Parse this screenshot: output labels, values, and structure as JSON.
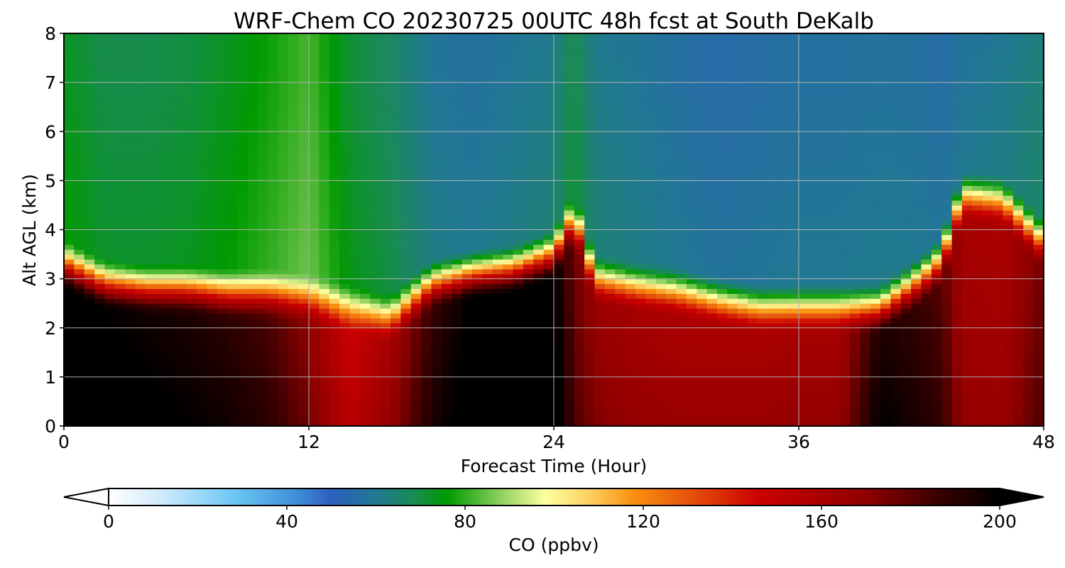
{
  "chart_data": {
    "type": "heatmap",
    "subtype": "filled-contour time-height cross section",
    "title": "WRF-Chem CO  20230725 00UTC 48h fcst at South DeKalb",
    "xlabel": "Forecast Time (Hour)",
    "ylabel": "Alt AGL (km)",
    "xlim": [
      0,
      48
    ],
    "ylim": [
      0,
      8
    ],
    "xticks": [
      0,
      12,
      24,
      36,
      48
    ],
    "xtick_labels": [
      "0",
      "12",
      "24",
      "36",
      "48"
    ],
    "yticks": [
      0,
      1,
      2,
      3,
      4,
      5,
      6,
      7,
      8
    ],
    "ytick_labels": [
      "0",
      "1",
      "2",
      "3",
      "4",
      "5",
      "6",
      "7",
      "8"
    ],
    "grid": true,
    "colorbar": {
      "label": "CO  (ppbv)",
      "range": [
        0,
        200
      ],
      "ticks": [
        0,
        40,
        80,
        120,
        160,
        200
      ],
      "tick_labels": [
        "0",
        "40",
        "80",
        "120",
        "160",
        "200"
      ],
      "extend": "both",
      "orientation": "horizontal",
      "placement": "bottom",
      "colormap_stops": [
        {
          "value": 0,
          "color": "#ffffff"
        },
        {
          "value": 12,
          "color": "#cfeafb"
        },
        {
          "value": 28,
          "color": "#6cc8f3"
        },
        {
          "value": 42,
          "color": "#3f8fd8"
        },
        {
          "value": 50,
          "color": "#2f5fbf"
        },
        {
          "value": 60,
          "color": "#217892"
        },
        {
          "value": 68,
          "color": "#1a8a58"
        },
        {
          "value": 76,
          "color": "#009a00"
        },
        {
          "value": 88,
          "color": "#8fd060"
        },
        {
          "value": 98,
          "color": "#ffffa0"
        },
        {
          "value": 108,
          "color": "#fcd060"
        },
        {
          "value": 118,
          "color": "#f98f10"
        },
        {
          "value": 130,
          "color": "#e6550d"
        },
        {
          "value": 146,
          "color": "#cc0000"
        },
        {
          "value": 170,
          "color": "#8f0000"
        },
        {
          "value": 186,
          "color": "#3a0000"
        },
        {
          "value": 200,
          "color": "#000000"
        }
      ]
    },
    "field": {
      "units": "ppbv",
      "hours": [
        0,
        2,
        4,
        6,
        8,
        10,
        12,
        14,
        16,
        18,
        20,
        22,
        24,
        25,
        26,
        28,
        30,
        32,
        34,
        36,
        38,
        40,
        42,
        43,
        44,
        46,
        48
      ],
      "boundary_layer_top_km": [
        3.2,
        2.8,
        2.7,
        2.7,
        2.6,
        2.6,
        2.5,
        2.3,
        2.1,
        2.8,
        3.0,
        3.1,
        3.4,
        4.2,
        2.9,
        2.75,
        2.65,
        2.45,
        2.3,
        2.3,
        2.3,
        2.3,
        2.9,
        3.3,
        4.6,
        4.5,
        3.6
      ],
      "boundary_layer_ppbv": [
        200,
        198,
        195,
        192,
        188,
        182,
        168,
        145,
        160,
        185,
        200,
        200,
        200,
        175,
        165,
        160,
        158,
        158,
        158,
        160,
        160,
        192,
        185,
        180,
        160,
        158,
        175
      ],
      "free_troposphere_ppbv": [
        76,
        72,
        72,
        73,
        76,
        80,
        85,
        74,
        70,
        62,
        60,
        62,
        64,
        72,
        64,
        62,
        60,
        58,
        59,
        60,
        60,
        61,
        60,
        58,
        60,
        62,
        66
      ]
    }
  }
}
